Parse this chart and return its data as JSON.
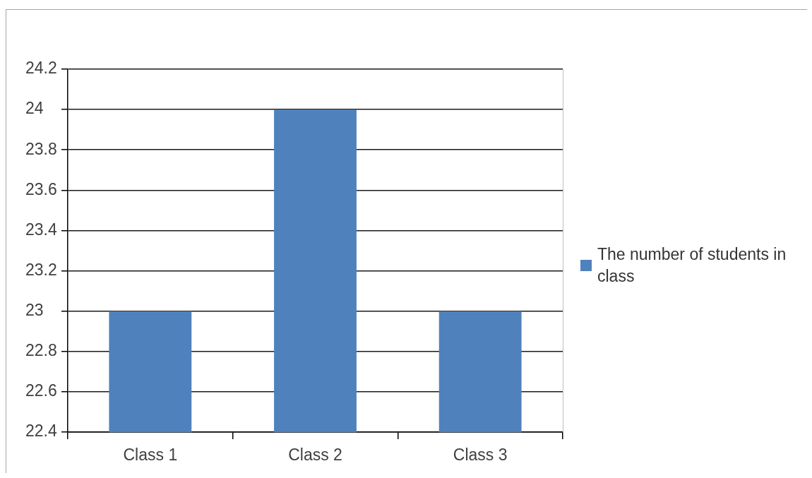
{
  "chart_data": {
    "type": "bar",
    "categories": [
      "Class 1",
      "Class 2",
      "Class 3"
    ],
    "series": [
      {
        "name": "The number of students in class",
        "color": "#4f81bd",
        "values": [
          23,
          24,
          23
        ]
      }
    ],
    "ylim": [
      22.4,
      24.2
    ],
    "yticks": [
      22.4,
      22.6,
      22.8,
      23,
      23.2,
      23.4,
      23.6,
      23.8,
      24,
      24.2
    ],
    "grid": "y",
    "legend": "right"
  }
}
